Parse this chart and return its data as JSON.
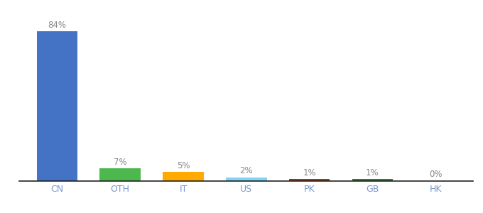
{
  "categories": [
    "CN",
    "OTH",
    "IT",
    "US",
    "PK",
    "GB",
    "HK"
  ],
  "values": [
    84,
    7,
    5,
    2,
    1,
    1,
    0
  ],
  "labels": [
    "84%",
    "7%",
    "5%",
    "2%",
    "1%",
    "1%",
    "0%"
  ],
  "colors": [
    "#4472c4",
    "#4db84d",
    "#ffaa00",
    "#80d4f5",
    "#9b3a10",
    "#2d7d32",
    "#cccccc"
  ],
  "background_color": "#ffffff",
  "bar_label_color": "#888888",
  "xlabel_color": "#7799cc",
  "ylim": [
    0,
    92
  ],
  "figsize": [
    6.8,
    3.0
  ],
  "dpi": 100,
  "bar_width": 0.65
}
